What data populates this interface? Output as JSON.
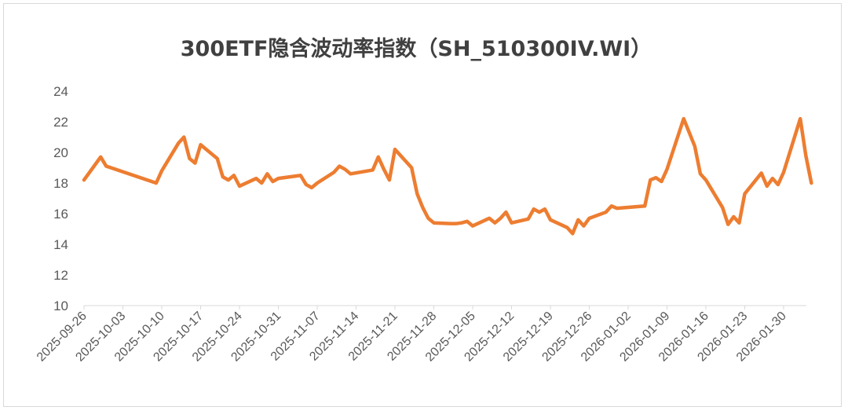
{
  "chart_data": {
    "type": "line",
    "title": "300ETF隐含波动率指数（SH_510300IV.WI）",
    "xlabel": "",
    "ylabel": "",
    "ylim": [
      10,
      24
    ],
    "yticks": [
      10,
      12,
      14,
      16,
      18,
      20,
      22,
      24
    ],
    "xticks": [
      "2025-09-26",
      "2025-10-03",
      "2025-10-10",
      "2025-10-17",
      "2025-10-24",
      "2025-10-31",
      "2025-11-07",
      "2025-11-14",
      "2025-11-21",
      "2025-11-28",
      "2025-12-05",
      "2025-12-12",
      "2025-12-19",
      "2025-12-26",
      "2026-01-02",
      "2026-01-09",
      "2026-01-16",
      "2026-01-23",
      "2026-01-30"
    ],
    "grid": false,
    "legend": "none",
    "color": "#ED7D31",
    "series": [
      {
        "points": [
          [
            "2025-09-26",
            18.2
          ],
          [
            "2025-09-29",
            19.7
          ],
          [
            "2025-09-30",
            19.1
          ],
          [
            "2025-10-09",
            18.0
          ],
          [
            "2025-10-10",
            18.8
          ],
          [
            "2025-10-13",
            20.6
          ],
          [
            "2025-10-14",
            21.0
          ],
          [
            "2025-10-15",
            19.6
          ],
          [
            "2025-10-16",
            19.3
          ],
          [
            "2025-10-17",
            20.5
          ],
          [
            "2025-10-20",
            19.6
          ],
          [
            "2025-10-21",
            18.4
          ],
          [
            "2025-10-22",
            18.2
          ],
          [
            "2025-10-23",
            18.5
          ],
          [
            "2025-10-24",
            17.8
          ],
          [
            "2025-10-27",
            18.3
          ],
          [
            "2025-10-28",
            18.0
          ],
          [
            "2025-10-29",
            18.6
          ],
          [
            "2025-10-30",
            18.1
          ],
          [
            "2025-10-31",
            18.3
          ],
          [
            "2025-11-03",
            18.45
          ],
          [
            "2025-11-04",
            18.5
          ],
          [
            "2025-11-05",
            17.9
          ],
          [
            "2025-11-06",
            17.7
          ],
          [
            "2025-11-07",
            18.0
          ],
          [
            "2025-11-10",
            18.7
          ],
          [
            "2025-11-11",
            19.1
          ],
          [
            "2025-11-12",
            18.9
          ],
          [
            "2025-11-13",
            18.6
          ],
          [
            "2025-11-17",
            18.85
          ],
          [
            "2025-11-18",
            19.7
          ],
          [
            "2025-11-19",
            18.9
          ],
          [
            "2025-11-20",
            18.2
          ],
          [
            "2025-11-21",
            20.2
          ],
          [
            "2025-11-24",
            19.0
          ],
          [
            "2025-11-25",
            17.3
          ],
          [
            "2025-11-26",
            16.4
          ],
          [
            "2025-11-27",
            15.7
          ],
          [
            "2025-11-28",
            15.4
          ],
          [
            "2025-12-01",
            15.35
          ],
          [
            "2025-12-02",
            15.35
          ],
          [
            "2025-12-03",
            15.4
          ],
          [
            "2025-12-04",
            15.5
          ],
          [
            "2025-12-05",
            15.2
          ],
          [
            "2025-12-08",
            15.7
          ],
          [
            "2025-12-09",
            15.4
          ],
          [
            "2025-12-10",
            15.7
          ],
          [
            "2025-12-11",
            16.1
          ],
          [
            "2025-12-12",
            15.4
          ],
          [
            "2025-12-15",
            15.65
          ],
          [
            "2025-12-16",
            16.3
          ],
          [
            "2025-12-17",
            16.1
          ],
          [
            "2025-12-18",
            16.3
          ],
          [
            "2025-12-19",
            15.6
          ],
          [
            "2025-12-22",
            15.1
          ],
          [
            "2025-12-23",
            14.7
          ],
          [
            "2025-12-24",
            15.6
          ],
          [
            "2025-12-25",
            15.2
          ],
          [
            "2025-12-26",
            15.7
          ],
          [
            "2025-12-29",
            16.1
          ],
          [
            "2025-12-30",
            16.5
          ],
          [
            "2025-12-31",
            16.35
          ],
          [
            "2026-01-05",
            16.5
          ],
          [
            "2026-01-06",
            18.2
          ],
          [
            "2026-01-07",
            18.35
          ],
          [
            "2026-01-08",
            18.1
          ],
          [
            "2026-01-09",
            18.9
          ],
          [
            "2026-01-12",
            22.2
          ],
          [
            "2026-01-13",
            21.3
          ],
          [
            "2026-01-14",
            20.4
          ],
          [
            "2026-01-15",
            18.6
          ],
          [
            "2026-01-16",
            18.2
          ],
          [
            "2026-01-19",
            16.4
          ],
          [
            "2026-01-20",
            15.3
          ],
          [
            "2026-01-21",
            15.8
          ],
          [
            "2026-01-22",
            15.4
          ],
          [
            "2026-01-23",
            17.3
          ],
          [
            "2026-01-26",
            18.65
          ],
          [
            "2026-01-27",
            17.8
          ],
          [
            "2026-01-28",
            18.3
          ],
          [
            "2026-01-29",
            17.9
          ],
          [
            "2026-01-30",
            18.7
          ],
          [
            "2026-02-02",
            22.2
          ],
          [
            "2026-02-03",
            19.8
          ],
          [
            "2026-02-04",
            18.0
          ]
        ]
      }
    ]
  }
}
